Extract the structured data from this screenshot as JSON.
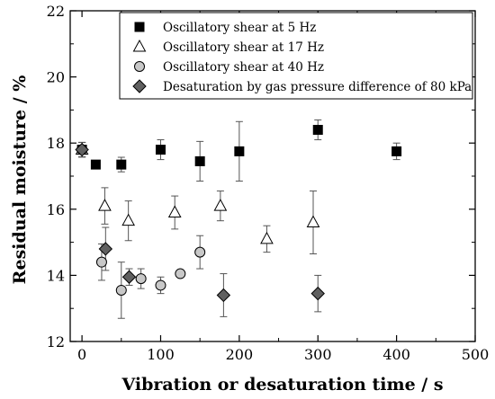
{
  "chart_data": {
    "type": "scatter",
    "xlabel": "Vibration or desaturation time / s",
    "ylabel": "Residual moisture / %",
    "xlim": [
      -15,
      500
    ],
    "ylim": [
      12,
      22
    ],
    "x_ticks": [
      0,
      100,
      200,
      300,
      400,
      500
    ],
    "y_ticks": [
      12,
      14,
      16,
      18,
      20,
      22
    ],
    "minor_x_step": 50,
    "minor_y_step": 1,
    "legend_position": "top-right",
    "grid": false,
    "series": [
      {
        "name": "Oscillatory shear at 5 Hz",
        "marker": "square",
        "fill": "#000000",
        "points": [
          {
            "x": 0,
            "y": 17.8,
            "err": 0.22
          },
          {
            "x": 17.5,
            "y": 17.35,
            "err": 0.0
          },
          {
            "x": 50,
            "y": 17.35,
            "err": 0.22
          },
          {
            "x": 100,
            "y": 17.8,
            "err": 0.3
          },
          {
            "x": 150,
            "y": 17.45,
            "err": 0.6
          },
          {
            "x": 200,
            "y": 17.75,
            "err": 0.9
          },
          {
            "x": 300,
            "y": 18.4,
            "err": 0.3
          },
          {
            "x": 400,
            "y": 17.75,
            "err": 0.25
          }
        ]
      },
      {
        "name": "Oscillatory shear at 17 Hz",
        "marker": "triangle",
        "fill": "#ffffff",
        "points": [
          {
            "x": 0,
            "y": 17.8,
            "err": 0.22
          },
          {
            "x": 29,
            "y": 16.1,
            "err": 0.55
          },
          {
            "x": 59,
            "y": 15.65,
            "err": 0.6
          },
          {
            "x": 118,
            "y": 15.9,
            "err": 0.5
          },
          {
            "x": 176,
            "y": 16.1,
            "err": 0.45
          },
          {
            "x": 235,
            "y": 15.1,
            "err": 0.4
          },
          {
            "x": 294,
            "y": 15.6,
            "err": 0.95
          }
        ]
      },
      {
        "name": "Oscillatory shear at 40 Hz",
        "marker": "circle",
        "fill": "#c8c8c8",
        "points": [
          {
            "x": 0,
            "y": 17.8,
            "err": 0.22
          },
          {
            "x": 25,
            "y": 14.4,
            "err": 0.55
          },
          {
            "x": 50,
            "y": 13.55,
            "err": 0.85
          },
          {
            "x": 75,
            "y": 13.9,
            "err": 0.3
          },
          {
            "x": 100,
            "y": 13.7,
            "err": 0.25
          },
          {
            "x": 125,
            "y": 14.05,
            "err": 0.0
          },
          {
            "x": 150,
            "y": 14.7,
            "err": 0.5
          }
        ]
      },
      {
        "name": "Desaturation by gas pressure difference of 80 kPa",
        "marker": "diamond",
        "fill": "#606060",
        "points": [
          {
            "x": 0,
            "y": 17.8,
            "err": 0.22
          },
          {
            "x": 30,
            "y": 14.8,
            "err": 0.65
          },
          {
            "x": 60,
            "y": 13.95,
            "err": 0.25
          },
          {
            "x": 180,
            "y": 13.4,
            "err": 0.65
          },
          {
            "x": 300,
            "y": 13.45,
            "err": 0.55
          }
        ]
      }
    ]
  }
}
